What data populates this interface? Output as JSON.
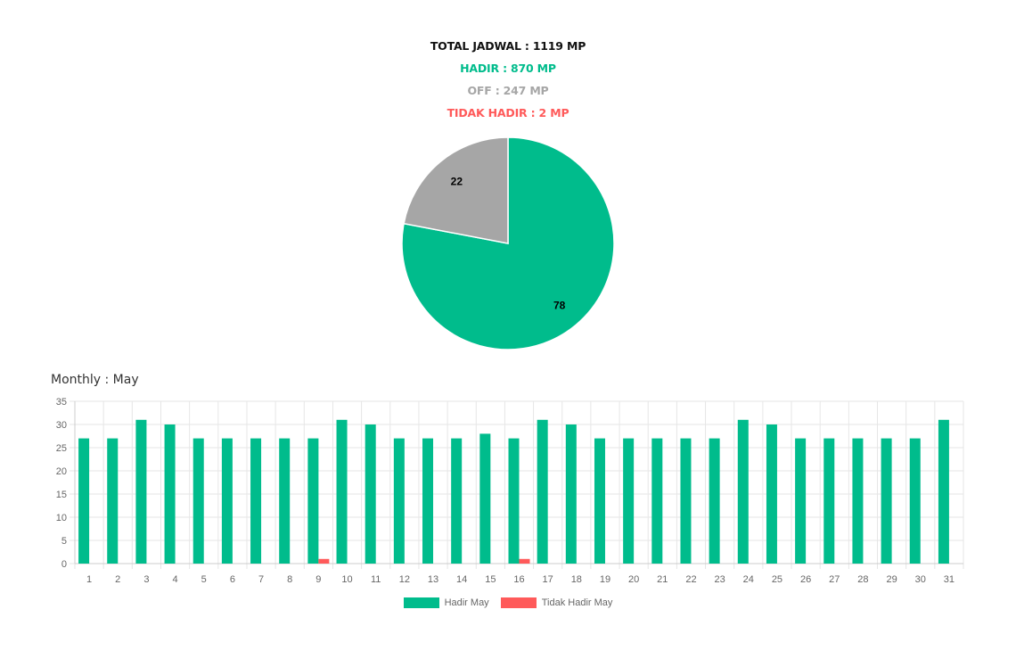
{
  "summary": {
    "total": "TOTAL JADWAL : 1119 MP",
    "hadir": "HADIR : 870 MP",
    "off": "OFF : 247 MP",
    "tidak_hadir": "TIDAK HADIR : 2 MP"
  },
  "colors": {
    "hadir": "#00BC8C",
    "off": "#A6A6A6",
    "tidak_hadir": "#FF5A5A",
    "grid": "#E6E6E6",
    "tick": "#666666"
  },
  "chart_data": [
    {
      "type": "pie",
      "slices": [
        {
          "value": 78,
          "label": "78",
          "color": "#00BC8C"
        },
        {
          "value": 22,
          "label": "22",
          "color": "#A6A6A6"
        }
      ]
    },
    {
      "type": "bar",
      "title": "Monthly : May",
      "categories": [
        "1",
        "2",
        "3",
        "4",
        "5",
        "6",
        "7",
        "8",
        "9",
        "10",
        "11",
        "12",
        "13",
        "14",
        "15",
        "16",
        "17",
        "18",
        "19",
        "20",
        "21",
        "22",
        "23",
        "24",
        "25",
        "26",
        "27",
        "28",
        "29",
        "30",
        "31"
      ],
      "series": [
        {
          "name": "Hadir May",
          "color": "#00BC8C",
          "values": [
            27,
            27,
            31,
            30,
            27,
            27,
            27,
            27,
            27,
            31,
            30,
            27,
            27,
            27,
            28,
            27,
            31,
            30,
            27,
            27,
            27,
            27,
            27,
            31,
            30,
            27,
            27,
            27,
            27,
            27,
            31
          ]
        },
        {
          "name": "Tidak Hadir May",
          "color": "#FF5A5A",
          "values": [
            0,
            0,
            0,
            0,
            0,
            0,
            0,
            0,
            1,
            0,
            0,
            0,
            0,
            0,
            0,
            1,
            0,
            0,
            0,
            0,
            0,
            0,
            0,
            0,
            0,
            0,
            0,
            0,
            0,
            0,
            0
          ]
        }
      ],
      "ylim": [
        0,
        35
      ],
      "yticks": [
        "0",
        "5",
        "10",
        "15",
        "20",
        "25",
        "30",
        "35"
      ],
      "grid": true,
      "legend": "bottom"
    }
  ]
}
